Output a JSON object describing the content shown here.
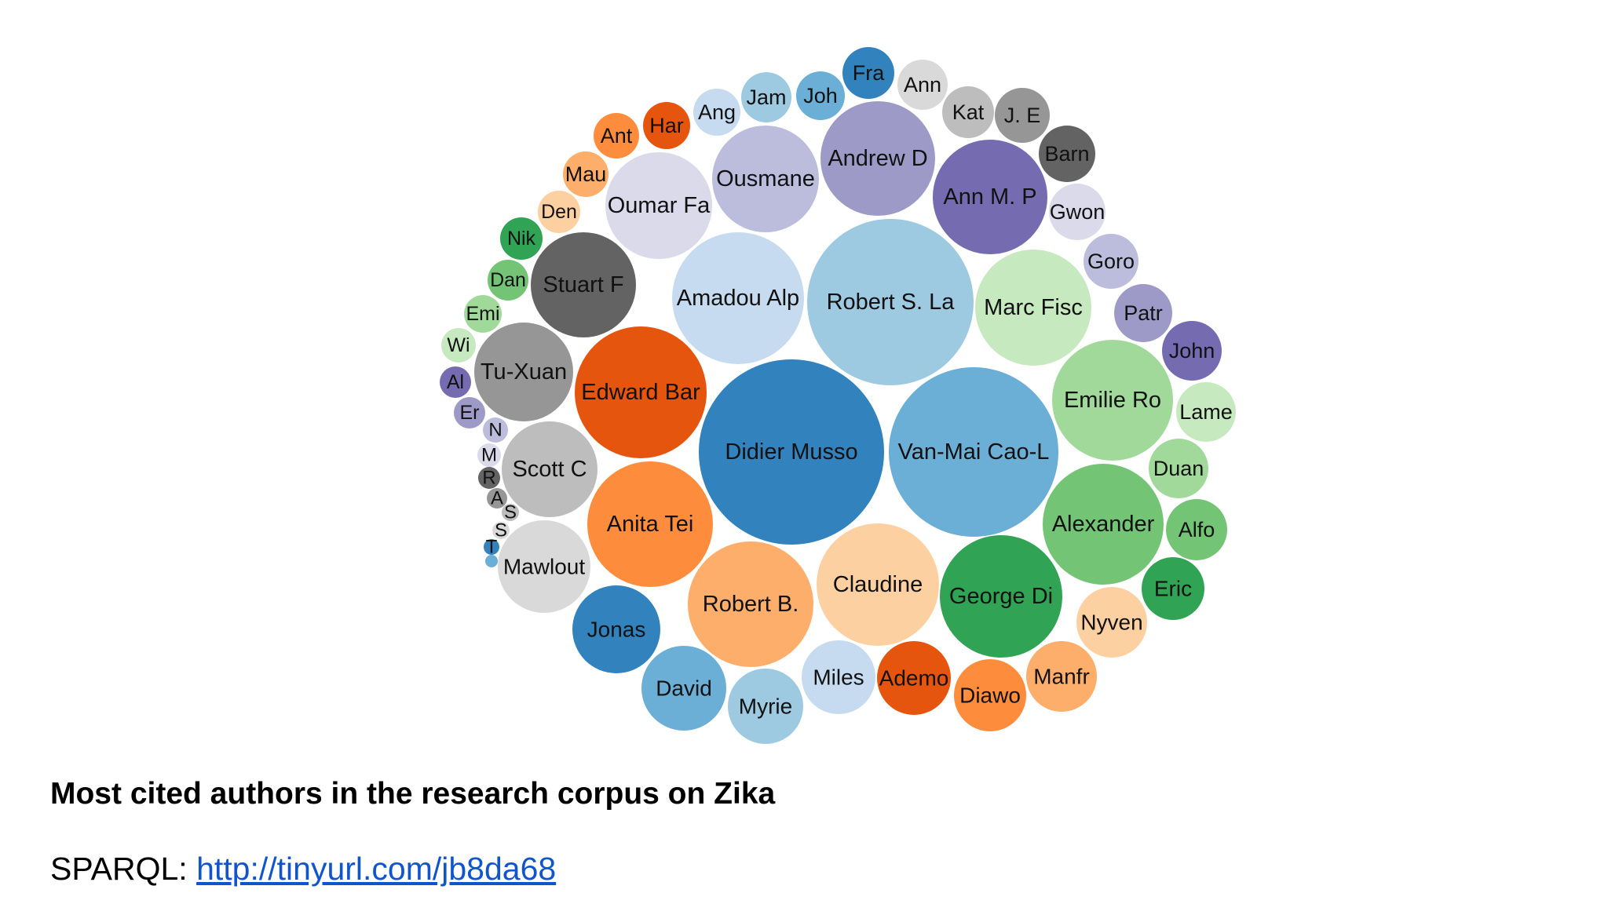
{
  "chart_data": {
    "type": "bubble",
    "title": "",
    "palette": {
      "blue": [
        "#3182bd",
        "#6baed6",
        "#9ecae1",
        "#c6dbef"
      ],
      "orange": [
        "#e6550d",
        "#fd8d3c",
        "#fdae6b",
        "#fdd0a2"
      ],
      "green": [
        "#31a354",
        "#74c476",
        "#a1d99b",
        "#c7e9c0"
      ],
      "purple": [
        "#756bb1",
        "#9e9ac8",
        "#bcbddc",
        "#dadaeb"
      ],
      "gray": [
        "#636363",
        "#969696",
        "#bdbdbd",
        "#d9d9d9"
      ]
    },
    "nodes": [
      {
        "label": "Didier Musso",
        "color": "#3182bd"
      },
      {
        "label": "Van-Mai Cao-L",
        "color": "#6baed6"
      },
      {
        "label": "Robert S. La",
        "color": "#9ecae1"
      },
      {
        "label": "Amadou Alp",
        "color": "#c6dbef"
      },
      {
        "label": "Edward Bar",
        "color": "#e6550d"
      },
      {
        "label": "Anita Tei",
        "color": "#fd8d3c"
      },
      {
        "label": "Robert B.",
        "color": "#fdae6b"
      },
      {
        "label": "Claudine",
        "color": "#fdd0a2"
      },
      {
        "label": "George Di",
        "color": "#31a354"
      },
      {
        "label": "Alexander",
        "color": "#74c476"
      },
      {
        "label": "Emilie Ro",
        "color": "#a1d99b"
      },
      {
        "label": "Marc Fisc",
        "color": "#c7e9c0"
      },
      {
        "label": "Ann M. P",
        "color": "#756bb1"
      },
      {
        "label": "Andrew D",
        "color": "#9e9ac8"
      },
      {
        "label": "Ousmane",
        "color": "#bcbddc"
      },
      {
        "label": "Oumar Fa",
        "color": "#dadaeb"
      },
      {
        "label": "Stuart F",
        "color": "#636363"
      },
      {
        "label": "Tu-Xuan",
        "color": "#969696"
      },
      {
        "label": "Scott C",
        "color": "#bdbdbd"
      },
      {
        "label": "Mawlout",
        "color": "#d9d9d9"
      },
      {
        "label": "Jonas",
        "color": "#3182bd"
      },
      {
        "label": "David",
        "color": "#6baed6"
      },
      {
        "label": "Myrie",
        "color": "#9ecae1"
      },
      {
        "label": "Miles",
        "color": "#c6dbef"
      },
      {
        "label": "Ademo",
        "color": "#e6550d"
      },
      {
        "label": "Diawo",
        "color": "#fd8d3c"
      },
      {
        "label": "Manfr",
        "color": "#fdae6b"
      },
      {
        "label": "Nyven",
        "color": "#fdd0a2"
      },
      {
        "label": "Eric",
        "color": "#31a354"
      },
      {
        "label": "Alfo",
        "color": "#74c476"
      },
      {
        "label": "Duan",
        "color": "#a1d99b"
      },
      {
        "label": "Lame",
        "color": "#c7e9c0"
      },
      {
        "label": "John",
        "color": "#756bb1"
      },
      {
        "label": "Patr",
        "color": "#9e9ac8"
      },
      {
        "label": "Goro",
        "color": "#bcbddc"
      },
      {
        "label": "Gwon",
        "color": "#dadaeb"
      },
      {
        "label": "Barn",
        "color": "#636363"
      },
      {
        "label": "J. E",
        "color": "#969696"
      },
      {
        "label": "Kat",
        "color": "#bdbdbd"
      },
      {
        "label": "Ann",
        "color": "#d9d9d9"
      },
      {
        "label": "Fra",
        "color": "#3182bd"
      },
      {
        "label": "Joh",
        "color": "#6baed6"
      },
      {
        "label": "Jam",
        "color": "#9ecae1"
      },
      {
        "label": "Ang",
        "color": "#c6dbef"
      },
      {
        "label": "Har",
        "color": "#e6550d"
      },
      {
        "label": "Ant",
        "color": "#fd8d3c"
      },
      {
        "label": "Mau",
        "color": "#fdae6b"
      },
      {
        "label": "Den",
        "color": "#fdd0a2"
      },
      {
        "label": "Nik",
        "color": "#31a354"
      },
      {
        "label": "Dan",
        "color": "#74c476"
      },
      {
        "label": "Emi",
        "color": "#a1d99b"
      },
      {
        "label": "Wi",
        "color": "#c7e9c0"
      },
      {
        "label": "Al",
        "color": "#756bb1"
      },
      {
        "label": "Er",
        "color": "#9e9ac8"
      },
      {
        "label": "N",
        "color": "#bcbddc"
      },
      {
        "label": "M",
        "color": "#dadaeb"
      },
      {
        "label": "R",
        "color": "#636363"
      },
      {
        "label": "A",
        "color": "#969696"
      },
      {
        "label": "S",
        "color": "#bdbdbd"
      },
      {
        "label": "S",
        "color": "#d9d9d9"
      },
      {
        "label": "T",
        "color": "#3182bd"
      },
      {
        "label": "",
        "color": "#6baed6"
      }
    ]
  },
  "caption": {
    "title": "Most cited authors in the research corpus on Zika",
    "query_label": "SPARQL: ",
    "query_link": "http://tinyurl.com/jb8da68"
  }
}
